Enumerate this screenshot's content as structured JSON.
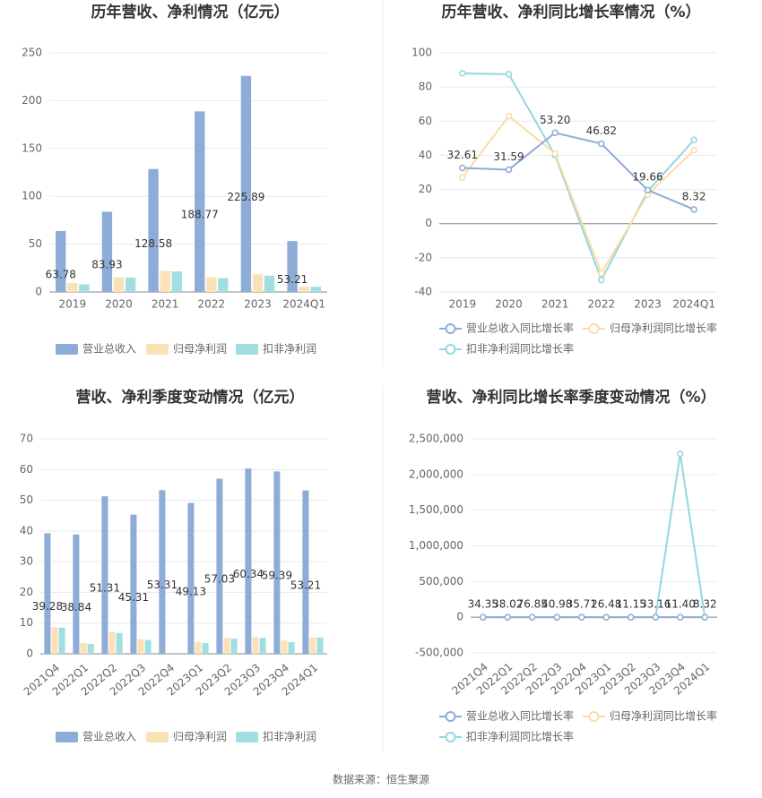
{
  "chart_data": [
    {
      "type": "bar",
      "title": "历年营收、净利情况（亿元）",
      "categories": [
        "2019",
        "2020",
        "2021",
        "2022",
        "2023",
        "2024Q1"
      ],
      "series": [
        {
          "name": "营业总收入",
          "color": "#8eacd8",
          "values": [
            63.78,
            83.93,
            128.58,
            188.77,
            225.89,
            53.21
          ]
        },
        {
          "name": "归母净利润",
          "color": "#fbe1b6",
          "values": [
            9.5,
            15.5,
            22,
            15.5,
            18.5,
            5.5
          ]
        },
        {
          "name": "扣非净利润",
          "color": "#a0dee1",
          "values": [
            8,
            15,
            21.5,
            14.5,
            17,
            5.5
          ]
        }
      ],
      "ylim": [
        0,
        250
      ],
      "yticks": [
        0,
        50,
        100,
        150,
        200,
        250
      ],
      "grid": true
    },
    {
      "type": "line",
      "title": "历年营收、净利同比增长率情况（%）",
      "categories": [
        "2019",
        "2020",
        "2021",
        "2022",
        "2023",
        "2024Q1"
      ],
      "series": [
        {
          "name": "营业总收入同比增长率",
          "color": "#8eacd8",
          "values": [
            32.61,
            31.59,
            53.2,
            46.82,
            19.66,
            8.32
          ],
          "value_labels": [
            "32.61",
            "31.59",
            "53.20",
            "46.82",
            "19.66",
            "8.32"
          ]
        },
        {
          "name": "归母净利润同比增长率",
          "color": "#fcdca4",
          "values": [
            27,
            63,
            41,
            -29,
            17,
            43
          ]
        },
        {
          "name": "扣非净利润同比增长率",
          "color": "#93d8de",
          "values": [
            88,
            87.5,
            40,
            -33,
            19,
            49
          ]
        }
      ],
      "ylim": [
        -40,
        100
      ],
      "yticks": [
        -40,
        -20,
        0,
        20,
        40,
        60,
        80,
        100
      ],
      "grid": true
    },
    {
      "type": "bar",
      "title": "营收、净利季度变动情况（亿元）",
      "categories": [
        "2021Q4",
        "2022Q1",
        "2022Q2",
        "2022Q3",
        "2022Q4",
        "2023Q1",
        "2023Q2",
        "2023Q3",
        "2023Q4",
        "2024Q1"
      ],
      "series": [
        {
          "name": "营业总收入",
          "color": "#8eacd8",
          "values": [
            39.28,
            38.84,
            51.31,
            45.31,
            53.31,
            49.13,
            57.03,
            60.34,
            59.39,
            53.21
          ]
        },
        {
          "name": "归母净利润",
          "color": "#fbe1b6",
          "values": [
            8.7,
            3.5,
            7.2,
            4.8,
            0,
            3.8,
            5.2,
            5.5,
            4.3,
            5.3
          ]
        },
        {
          "name": "扣非净利润",
          "color": "#a0dee1",
          "values": [
            8.5,
            3.2,
            6.8,
            4.5,
            0,
            3.5,
            4.9,
            5.2,
            3.8,
            5.3
          ]
        }
      ],
      "ylim": [
        0,
        70
      ],
      "yticks": [
        0,
        10,
        20,
        30,
        40,
        50,
        60,
        70
      ],
      "grid": true
    },
    {
      "type": "line",
      "title": "营收、净利同比增长率季度变动情况（%）",
      "categories": [
        "2021Q4",
        "2022Q1",
        "2022Q2",
        "2022Q3",
        "2022Q4",
        "2023Q1",
        "2023Q2",
        "2023Q3",
        "2023Q4",
        "2024Q1"
      ],
      "series": [
        {
          "name": "营业总收入同比增长率",
          "color": "#8eacd8",
          "values": [
            34.35,
            38.02,
            76.85,
            40.98,
            35.71,
            26.48,
            11.15,
            33.16,
            11.4,
            8.32
          ],
          "value_labels": [
            "34.35",
            "38.02",
            "76.85",
            "40.98",
            "35.71",
            "26.48",
            "11.15",
            "33.16",
            "11.40",
            "8.32"
          ]
        },
        {
          "name": "归母净利润同比增长率",
          "color": "#fcdca4",
          "values": [
            50,
            20,
            60,
            -30,
            -100,
            -50,
            40,
            20,
            10,
            15
          ]
        },
        {
          "name": "扣非净利润同比增长率",
          "color": "#93d8de",
          "values": [
            60,
            25,
            70,
            -40,
            -110,
            -60,
            45,
            25,
            2290000,
            30
          ]
        }
      ],
      "ylim": [
        -500000,
        2500000
      ],
      "yticks": [
        {
          "value": -500000,
          "label": "-500,000"
        },
        0,
        {
          "value": 500000,
          "label": "500,000"
        },
        {
          "value": 1000000,
          "label": "1,000,000"
        },
        {
          "value": 1500000,
          "label": "1,500,000"
        },
        {
          "value": 2000000,
          "label": "2,000,000"
        },
        {
          "value": 2500000,
          "label": "2,500,000"
        }
      ],
      "grid": true
    }
  ],
  "footer": "数据来源：恒生聚源"
}
